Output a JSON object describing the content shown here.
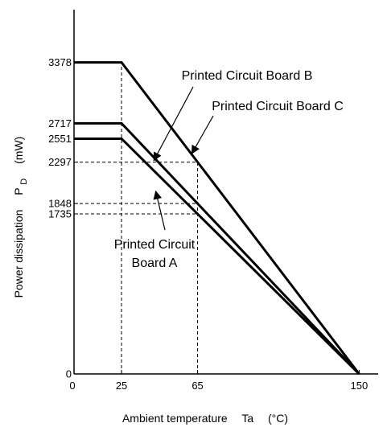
{
  "chart_data": {
    "type": "line",
    "xlabel": "Ambient temperature",
    "xlabel_symbol": "Ta",
    "xlabel_unit": "(°C)",
    "ylabel": "Power dissipation",
    "ylabel_symbol": "P",
    "ylabel_symbol_sub": "D",
    "ylabel_unit": "(mW)",
    "xlim": [
      0,
      160
    ],
    "ylim": [
      0,
      3950
    ],
    "x_ticks": [
      0,
      25,
      65,
      150
    ],
    "y_ticks": [
      0,
      1735,
      1848,
      2297,
      2551,
      2717,
      3378
    ],
    "series": [
      {
        "name": "Printed Circuit Board A",
        "x": [
          0,
          25,
          150
        ],
        "y": [
          2551,
          2551,
          0
        ]
      },
      {
        "name": "Printed Circuit Board B",
        "x": [
          0,
          25,
          150
        ],
        "y": [
          2717,
          2717,
          0
        ]
      },
      {
        "name": "Printed Circuit Board C",
        "x": [
          0,
          25,
          150
        ],
        "y": [
          3378,
          3378,
          0
        ]
      }
    ],
    "reference_lines": [
      {
        "x": 25,
        "y_top": 3378
      },
      {
        "x": 65,
        "y_top": 2297
      },
      {
        "y": 2297,
        "x_right": 65
      },
      {
        "y": 1848,
        "x_right": 65
      },
      {
        "y": 1735,
        "x_right": 65
      }
    ],
    "annotations": [
      {
        "lines": [
          "Printed Circuit Board B"
        ],
        "arrow_to": [
          42,
          2315
        ]
      },
      {
        "lines": [
          "Printed Circuit Board C"
        ],
        "arrow_to": [
          62,
          2390
        ]
      },
      {
        "lines": [
          "Printed Circuit",
          "Board A"
        ],
        "arrow_to": [
          43,
          1980
        ]
      }
    ]
  }
}
